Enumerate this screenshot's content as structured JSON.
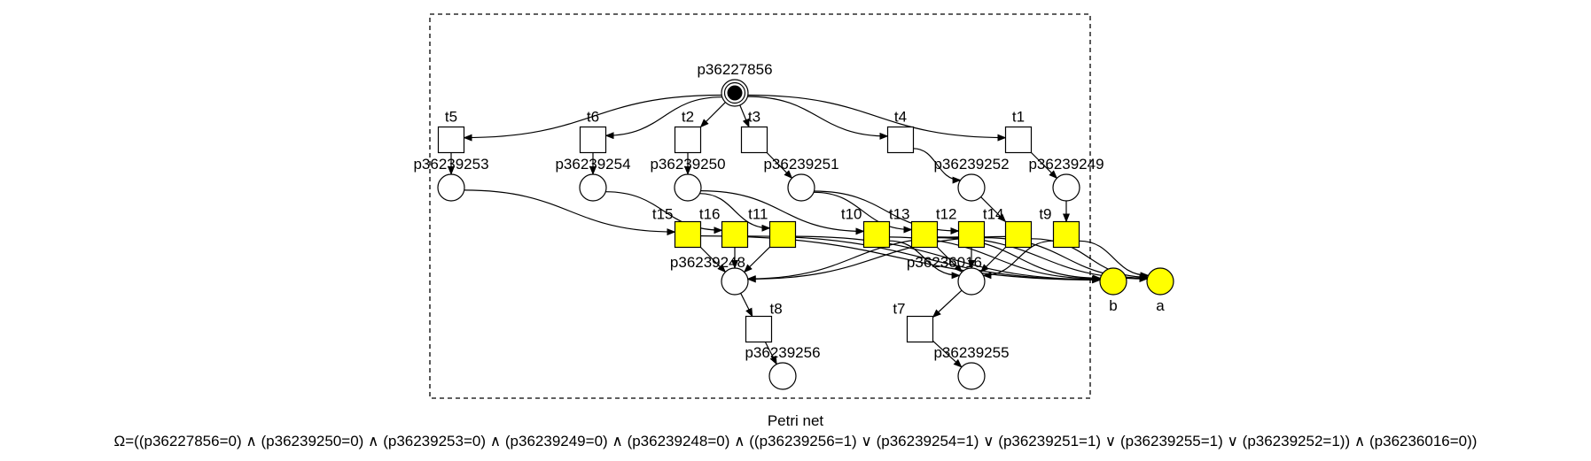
{
  "diagram": {
    "type": "petri-net",
    "title": "Petri net",
    "formula": "Ω=((p36227856=0) ∧ (p36239250=0) ∧ (p36239253=0) ∧ (p36239249=0) ∧ (p36239248=0) ∧ ((p36239256=1) ∨ (p36239254=1) ∨ (p36239251=1) ∨ (p36239255=1) ∨ (p36239252=1)) ∧ (p36236016=0))",
    "colors": {
      "highlight": "#ffff00",
      "stroke": "#000000",
      "background": "#ffffff"
    },
    "places": [
      {
        "id": "p36227856",
        "label": "p36227856",
        "tokens": 1,
        "highlight": false
      },
      {
        "id": "p36239253",
        "label": "p36239253",
        "tokens": 0,
        "highlight": false
      },
      {
        "id": "p36239254",
        "label": "p36239254",
        "tokens": 0,
        "highlight": false
      },
      {
        "id": "p36239250",
        "label": "p36239250",
        "tokens": 0,
        "highlight": false
      },
      {
        "id": "p36239251",
        "label": "p36239251",
        "tokens": 0,
        "highlight": false
      },
      {
        "id": "p36239252",
        "label": "p36239252",
        "tokens": 0,
        "highlight": false
      },
      {
        "id": "p36239249",
        "label": "p36239249",
        "tokens": 0,
        "highlight": false
      },
      {
        "id": "p36239248",
        "label": "p36239248",
        "tokens": 0,
        "highlight": false
      },
      {
        "id": "p36236016",
        "label": "p36236016",
        "tokens": 0,
        "highlight": false
      },
      {
        "id": "p36239256",
        "label": "p36239256",
        "tokens": 0,
        "highlight": false
      },
      {
        "id": "p36239255",
        "label": "p36239255",
        "tokens": 0,
        "highlight": false
      },
      {
        "id": "b",
        "label": "b",
        "tokens": 0,
        "highlight": true
      },
      {
        "id": "a",
        "label": "a",
        "tokens": 0,
        "highlight": true
      }
    ],
    "transitions": [
      {
        "id": "t5",
        "label": "t5",
        "highlight": false
      },
      {
        "id": "t6",
        "label": "t6",
        "highlight": false
      },
      {
        "id": "t2",
        "label": "t2",
        "highlight": false
      },
      {
        "id": "t3",
        "label": "t3",
        "highlight": false
      },
      {
        "id": "t4",
        "label": "t4",
        "highlight": false
      },
      {
        "id": "t1",
        "label": "t1",
        "highlight": false
      },
      {
        "id": "t15",
        "label": "t15",
        "highlight": true
      },
      {
        "id": "t16",
        "label": "t16",
        "highlight": true
      },
      {
        "id": "t11",
        "label": "t11",
        "highlight": true
      },
      {
        "id": "t10",
        "label": "t10",
        "highlight": true
      },
      {
        "id": "t13",
        "label": "t13",
        "highlight": true
      },
      {
        "id": "t12",
        "label": "t12",
        "highlight": true
      },
      {
        "id": "t14",
        "label": "t14",
        "highlight": true
      },
      {
        "id": "t9",
        "label": "t9",
        "highlight": true
      },
      {
        "id": "t8",
        "label": "t8",
        "highlight": false
      },
      {
        "id": "t7",
        "label": "t7",
        "highlight": false
      }
    ],
    "arcs": [
      [
        "p36227856",
        "t5"
      ],
      [
        "p36227856",
        "t6"
      ],
      [
        "p36227856",
        "t2"
      ],
      [
        "p36227856",
        "t3"
      ],
      [
        "p36227856",
        "t4"
      ],
      [
        "p36227856",
        "t1"
      ],
      [
        "t5",
        "p36239253"
      ],
      [
        "t6",
        "p36239254"
      ],
      [
        "t2",
        "p36239250"
      ],
      [
        "t3",
        "p36239251"
      ],
      [
        "t4",
        "p36239252"
      ],
      [
        "t1",
        "p36239249"
      ],
      [
        "p36239253",
        "t15"
      ],
      [
        "p36239254",
        "t16"
      ],
      [
        "p36239250",
        "t11"
      ],
      [
        "p36239250",
        "t10"
      ],
      [
        "p36239251",
        "t13"
      ],
      [
        "p36239251",
        "t12"
      ],
      [
        "p36239252",
        "t14"
      ],
      [
        "p36239249",
        "t9"
      ],
      [
        "t15",
        "p36239248"
      ],
      [
        "t16",
        "p36239248"
      ],
      [
        "t11",
        "p36239248"
      ],
      [
        "t10",
        "p36236016"
      ],
      [
        "t13",
        "p36236016"
      ],
      [
        "t12",
        "p36236016"
      ],
      [
        "t14",
        "p36236016"
      ],
      [
        "t9",
        "p36236016"
      ],
      [
        "t14",
        "p36239248"
      ],
      [
        "t12",
        "p36239248"
      ],
      [
        "t15",
        "b"
      ],
      [
        "t16",
        "b"
      ],
      [
        "t11",
        "b"
      ],
      [
        "t10",
        "b"
      ],
      [
        "t13",
        "b"
      ],
      [
        "t12",
        "a"
      ],
      [
        "t14",
        "a"
      ],
      [
        "t9",
        "a"
      ],
      [
        "t13",
        "a"
      ],
      [
        "p36239248",
        "t8"
      ],
      [
        "t8",
        "p36239256"
      ],
      [
        "p36236016",
        "t7"
      ],
      [
        "t7",
        "p36239255"
      ]
    ]
  }
}
